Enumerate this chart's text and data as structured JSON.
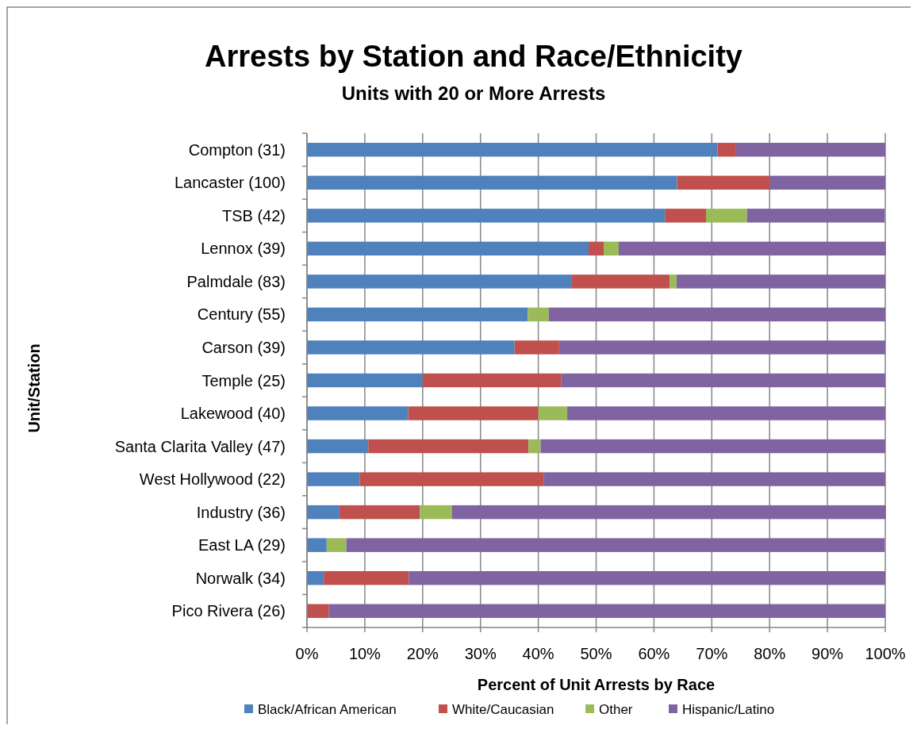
{
  "chart_data": {
    "type": "bar",
    "orientation": "horizontal",
    "stacked": true,
    "title": "Arrests by Station and Race/Ethnicity",
    "subtitle": "Units with 20 or More Arrests",
    "xlabel": "Percent of Unit Arrests by Race",
    "ylabel": "Unit/Station",
    "categories": [
      "Compton (31)",
      "Lancaster (100)",
      "TSB (42)",
      "Lennox (39)",
      "Palmdale (83)",
      "Century (55)",
      "Carson (39)",
      "Temple (25)",
      "Lakewood (40)",
      "Santa Clarita Valley (47)",
      "West Hollywood (22)",
      "Industry (36)",
      "East LA (29)",
      "Norwalk (34)",
      "Pico Rivera (26)"
    ],
    "series": [
      {
        "name": "Black/African American",
        "color": "#4f81bd",
        "values": [
          71.0,
          64,
          61.9,
          48.7,
          45.8,
          38.2,
          35.9,
          20,
          17.5,
          10.6,
          9.1,
          5.6,
          3.4,
          2.9,
          0
        ]
      },
      {
        "name": "White/Caucasian",
        "color": "#c0504d",
        "values": [
          3.2,
          16,
          7.1,
          2.6,
          16.9,
          0,
          7.7,
          24,
          22.5,
          27.7,
          31.8,
          13.9,
          0,
          14.7,
          3.8
        ]
      },
      {
        "name": "Other",
        "color": "#9bbb59",
        "values": [
          0,
          0,
          7.1,
          2.6,
          1.2,
          3.6,
          0,
          0,
          5,
          2.1,
          0,
          5.6,
          3.4,
          0,
          0
        ]
      },
      {
        "name": "Hispanic/Latino",
        "color": "#8064a2",
        "values": [
          25.8,
          20,
          23.8,
          46.2,
          36.1,
          58.2,
          56.4,
          56,
          55,
          59.6,
          59.1,
          75,
          93.1,
          82.4,
          96.2
        ]
      }
    ],
    "xlim": [
      0,
      100
    ],
    "xticks": [
      {
        "value": 0,
        "label": "0%"
      },
      {
        "value": 10,
        "label": "10%"
      },
      {
        "value": 20,
        "label": "20%"
      },
      {
        "value": 30,
        "label": "30%"
      },
      {
        "value": 40,
        "label": "40%"
      },
      {
        "value": 50,
        "label": "50%"
      },
      {
        "value": 60,
        "label": "60%"
      },
      {
        "value": 70,
        "label": "70%"
      },
      {
        "value": 80,
        "label": "80%"
      },
      {
        "value": 90,
        "label": "90%"
      },
      {
        "value": 100,
        "label": "100%"
      }
    ],
    "grid": "x",
    "legend": "bottom"
  }
}
